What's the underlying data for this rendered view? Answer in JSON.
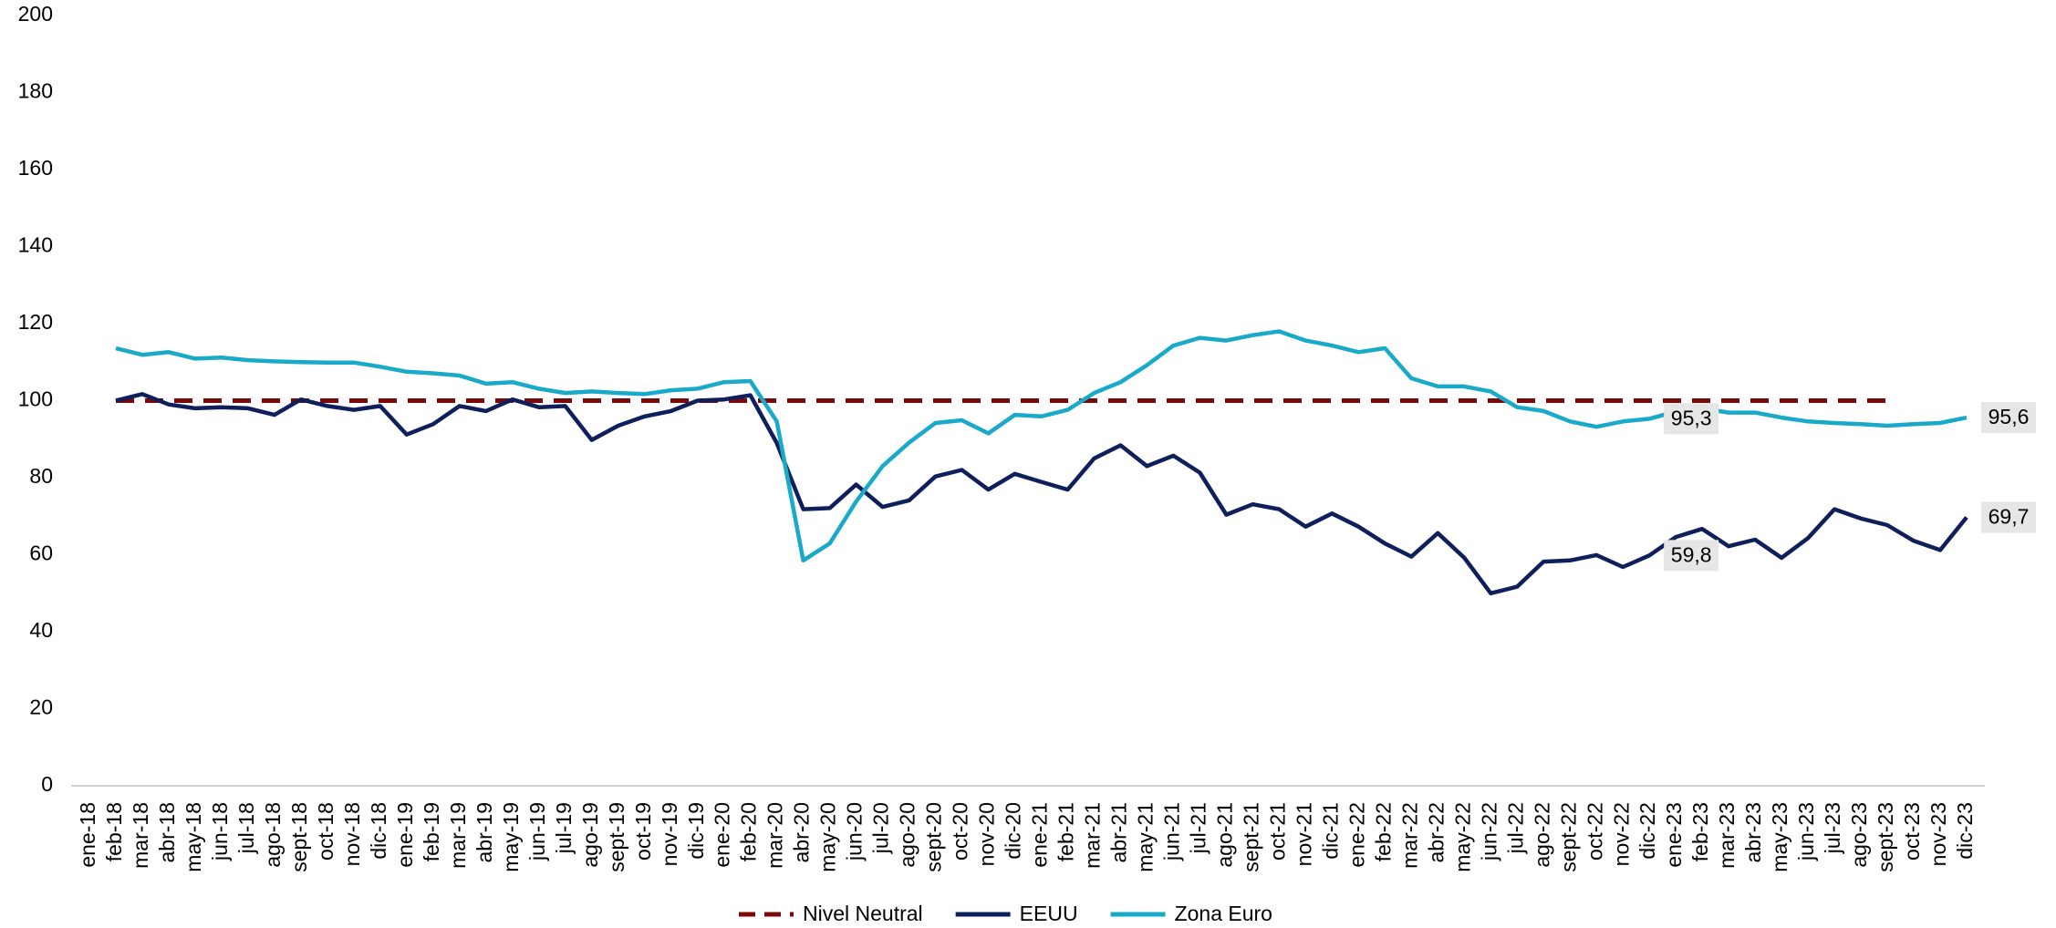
{
  "chart_data": {
    "type": "line",
    "categories": [
      "ene-18",
      "feb-18",
      "mar-18",
      "abr-18",
      "may-18",
      "jun-18",
      "jul-18",
      "ago-18",
      "sept-18",
      "oct-18",
      "nov-18",
      "dic-18",
      "ene-19",
      "feb-19",
      "mar-19",
      "abr-19",
      "may-19",
      "jun-19",
      "jul-19",
      "ago-19",
      "sept-19",
      "oct-19",
      "nov-19",
      "dic-19",
      "ene-20",
      "feb-20",
      "mar-20",
      "abr-20",
      "may-20",
      "jun-20",
      "jul-20",
      "ago-20",
      "sept-20",
      "oct-20",
      "nov-20",
      "dic-20",
      "ene-21",
      "feb-21",
      "mar-21",
      "abr-21",
      "may-21",
      "jun-21",
      "jul-21",
      "ago-21",
      "sept-21",
      "oct-21",
      "nov-21",
      "dic-21",
      "ene-22",
      "feb-22",
      "mar-22",
      "abr-22",
      "may-22",
      "jun-22",
      "jul-22",
      "ago-22",
      "sept-22",
      "oct-22",
      "nov-22",
      "dic-22",
      "ene-23",
      "feb-23",
      "mar-23",
      "abr-23",
      "may-23",
      "jun-23",
      "jul-23",
      "ago-23",
      "sept-23",
      "oct-23",
      "nov-23",
      "dic-23"
    ],
    "series": [
      {
        "name": "Nivel Neutral",
        "color": "#7a0a0a",
        "dashed": true,
        "values": [
          null,
          100,
          100,
          100,
          100,
          100,
          100,
          100,
          100,
          100,
          100,
          100,
          100,
          100,
          100,
          100,
          100,
          100,
          100,
          100,
          100,
          100,
          100,
          100,
          100,
          100,
          100,
          100,
          100,
          100,
          100,
          100,
          100,
          100,
          100,
          100,
          100,
          100,
          100,
          100,
          100,
          100,
          100,
          100,
          100,
          100,
          100,
          100,
          100,
          100,
          100,
          100,
          100,
          100,
          100,
          100,
          100,
          100,
          100,
          100,
          100,
          100,
          100,
          100,
          100,
          100,
          100,
          100,
          100,
          null,
          null,
          null
        ]
      },
      {
        "name": "EEUU",
        "color": "#0e1f5b",
        "values": [
          null,
          100,
          101.7,
          99,
          98,
          98.3,
          98,
          96.3,
          100.3,
          98.6,
          97.6,
          98.6,
          91.2,
          93.9,
          98.6,
          97.3,
          100.3,
          98.3,
          98.6,
          89.8,
          93.5,
          95.9,
          97.3,
          100,
          100.3,
          101.4,
          89,
          71.8,
          72.1,
          78.2,
          72.4,
          74.1,
          80.3,
          82,
          76.9,
          81,
          78.9,
          76.9,
          85,
          88.4,
          83,
          85.7,
          81.3,
          70.4,
          73.1,
          71.8,
          67.3,
          70.7,
          67.3,
          62.9,
          59.5,
          65.6,
          59.2,
          50,
          51.7,
          58.2,
          58.5,
          59.9,
          56.8,
          59.8,
          64.6,
          66.7,
          62.2,
          63.9,
          59.2,
          64.3,
          71.8,
          69.4,
          67.7,
          63.6,
          61.2,
          69.7
        ],
        "value_labels": [
          null,
          null,
          null,
          null,
          null,
          null,
          null,
          null,
          null,
          null,
          null,
          null,
          null,
          null,
          null,
          null,
          null,
          null,
          null,
          null,
          null,
          null,
          null,
          null,
          null,
          null,
          null,
          null,
          null,
          null,
          null,
          null,
          null,
          null,
          null,
          null,
          null,
          null,
          null,
          null,
          null,
          null,
          null,
          null,
          null,
          null,
          null,
          null,
          null,
          null,
          null,
          null,
          null,
          null,
          null,
          null,
          null,
          null,
          null,
          "59,8",
          null,
          null,
          null,
          null,
          null,
          null,
          null,
          null,
          null,
          null,
          null,
          "69,7"
        ]
      },
      {
        "name": "Zona Euro",
        "color": "#19a9c9",
        "values": [
          null,
          113.6,
          111.9,
          112.6,
          110.9,
          111.2,
          110.5,
          110.2,
          110,
          109.9,
          109.9,
          108.8,
          107.5,
          107.1,
          106.5,
          104.4,
          104.8,
          103.1,
          102,
          102.4,
          102,
          101.7,
          102.7,
          103.1,
          104.8,
          105.1,
          94.6,
          58.5,
          62.9,
          73.8,
          83,
          89.1,
          94.2,
          94.9,
          91.5,
          96.3,
          95.9,
          97.6,
          102,
          104.8,
          109.2,
          114.3,
          116.3,
          115.6,
          117,
          118,
          115.6,
          114.3,
          112.6,
          113.6,
          105.8,
          103.7,
          103.7,
          102.4,
          98.3,
          97.3,
          94.6,
          93.2,
          94.6,
          95.3,
          97.2,
          98,
          96.9,
          96.9,
          95.6,
          94.6,
          94.2,
          93.9,
          93.5,
          93.9,
          94.2,
          95.6
        ],
        "value_labels": [
          null,
          null,
          null,
          null,
          null,
          null,
          null,
          null,
          null,
          null,
          null,
          null,
          null,
          null,
          null,
          null,
          null,
          null,
          null,
          null,
          null,
          null,
          null,
          null,
          null,
          null,
          null,
          null,
          null,
          null,
          null,
          null,
          null,
          null,
          null,
          null,
          null,
          null,
          null,
          null,
          null,
          null,
          null,
          null,
          null,
          null,
          null,
          null,
          null,
          null,
          null,
          null,
          null,
          null,
          null,
          null,
          null,
          null,
          null,
          "95,3",
          null,
          null,
          null,
          null,
          null,
          null,
          null,
          null,
          null,
          null,
          null,
          "95,6"
        ]
      }
    ],
    "ylim": [
      0,
      200
    ],
    "yticks": [
      0,
      20,
      40,
      60,
      80,
      100,
      120,
      140,
      160,
      180,
      200
    ],
    "grid": false,
    "legend": "bottom"
  }
}
